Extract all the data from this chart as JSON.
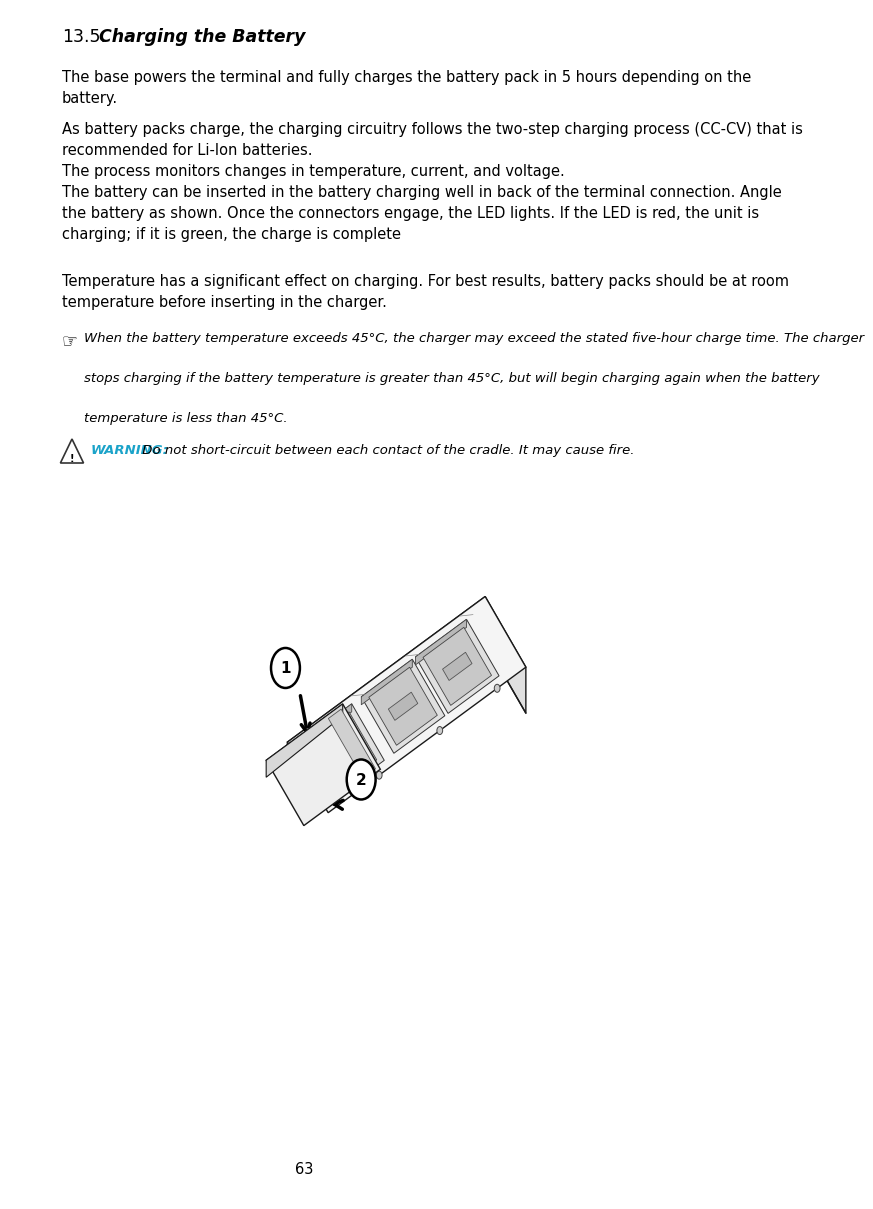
{
  "page_number": "63",
  "section_number": "13.5.",
  "section_title": "Charging the Battery",
  "para1_l1": "The base powers the terminal and fully charges the battery pack in 5 hours depending on the",
  "para1_l2": "battery.",
  "para2": "As battery packs charge, the charging circuitry follows the two-step charging process (CC-CV) that is\nrecommended for Li-Ion batteries.\nThe process monitors changes in temperature, current, and voltage.\nThe battery can be inserted in the battery charging well in back of the terminal connection. Angle\nthe battery as shown. Once the connectors engage, the LED lights. If the LED is red, the unit is\ncharging; if it is green, the charge is complete",
  "para3_l1": "Temperature has a significant effect on charging. For best results, battery packs should be at room",
  "para3_l2": "temperature before inserting in the charger.",
  "note_l1": "When the battery temperature exceeds 45°C, the charger may exceed the stated five-hour charge time. The charger",
  "note_l2": "stops charging if the battery temperature is greater than 45°C, but will begin charging again when the battery",
  "note_l3": "temperature is less than 45°C.",
  "warning_label": "WARNING:",
  "warning_text": " Do not short-circuit between each contact of the cradle. It may cause fire.",
  "warning_color": "#1BA3C9",
  "bg": "#ffffff",
  "fg": "#000000",
  "fs_body": 10.5,
  "fs_title": 12.5,
  "fs_note": 9.5,
  "fs_warn": 9.5,
  "lm": 0.088
}
